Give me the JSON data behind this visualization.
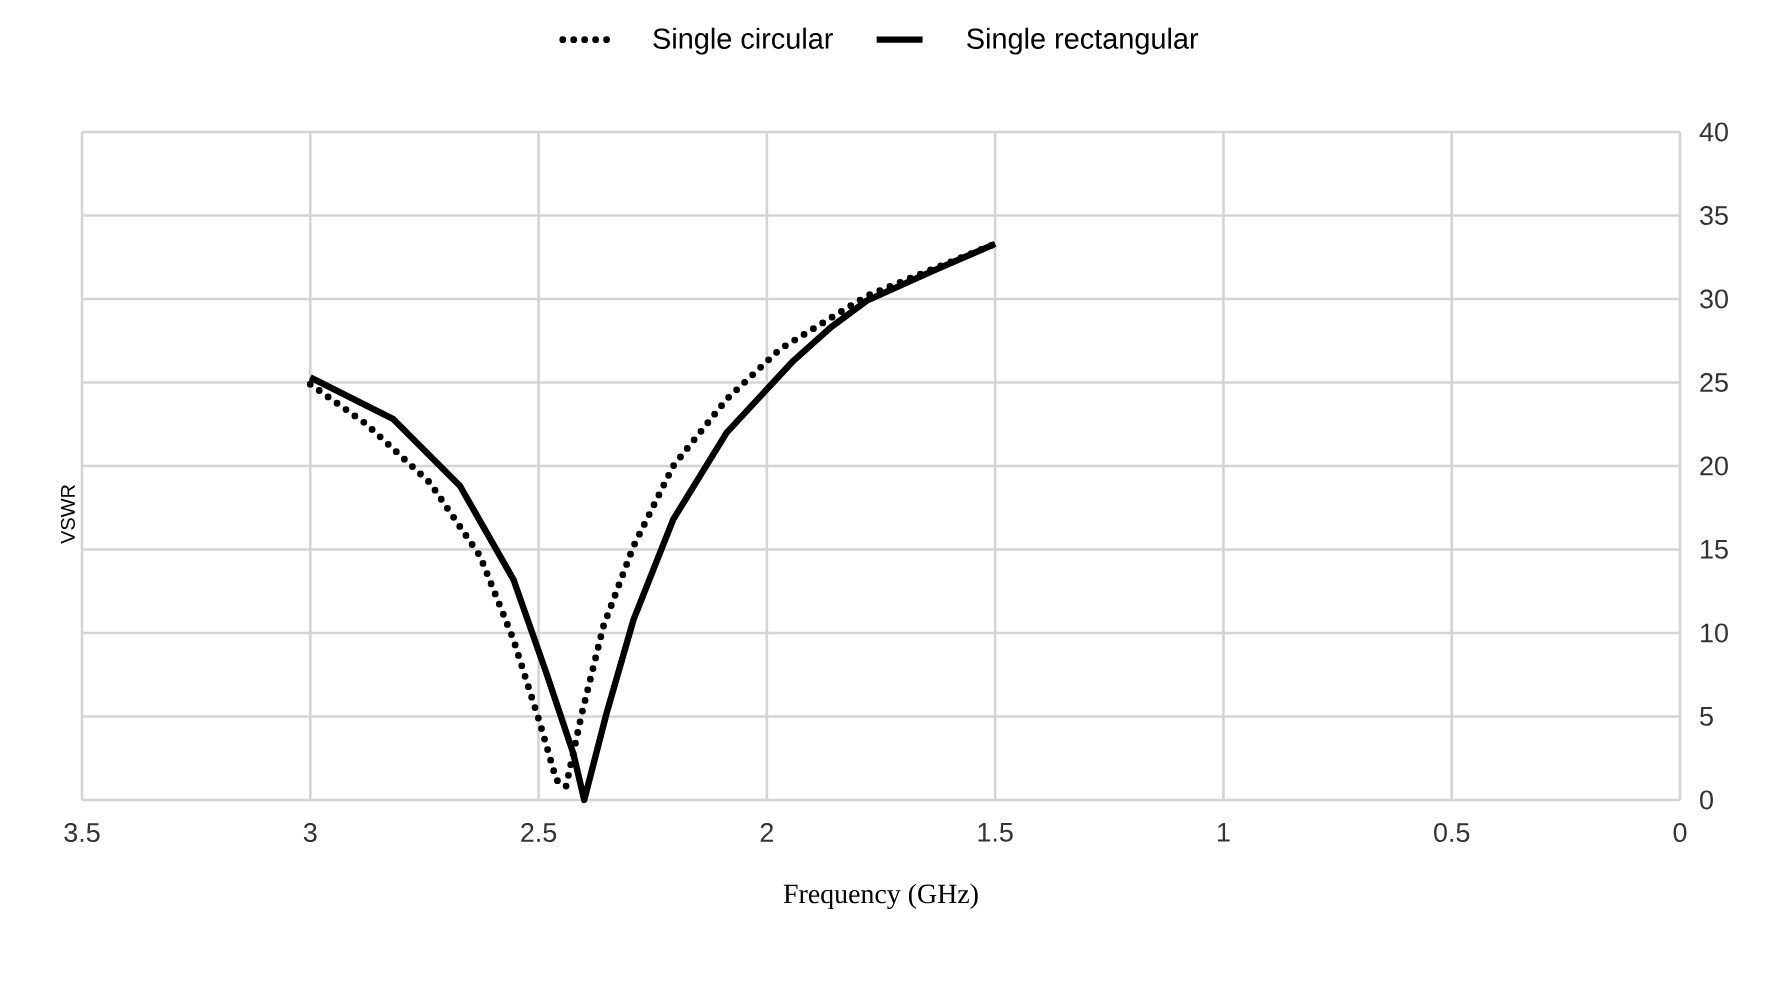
{
  "chart_data": {
    "type": "line",
    "xlabel": "Frequency (GHz)",
    "ylabel": "VSWR",
    "xlim": [
      3.5,
      0
    ],
    "xticks": [
      3.5,
      3,
      2.5,
      2,
      1.5,
      1,
      0.5,
      0
    ],
    "ylim": [
      0,
      40
    ],
    "yticks": [
      0,
      5,
      10,
      15,
      20,
      25,
      30,
      35,
      40
    ],
    "grid": true,
    "legend": "top",
    "series": [
      {
        "name": "Single circular",
        "color": "#000000",
        "line_style": "dotted",
        "x": [
          3.0,
          2.877,
          2.738,
          2.628,
          2.555,
          2.497,
          2.461,
          2.44,
          2.405,
          2.358,
          2.292,
          2.205,
          2.088,
          1.971,
          1.78,
          1.5
        ],
        "values": [
          24.9,
          22.5,
          19.0,
          14.6,
          9.6,
          4.6,
          1.2,
          0.8,
          5.2,
          10.4,
          15.2,
          20.0,
          24.0,
          27.0,
          30.2,
          33.3
        ]
      },
      {
        "name": "Single rectangular",
        "color": "#000000",
        "line_style": "solid",
        "x": [
          3.0,
          2.818,
          2.672,
          2.555,
          2.483,
          2.424,
          2.4,
          2.351,
          2.292,
          2.205,
          2.088,
          1.942,
          1.86,
          1.781,
          1.635,
          1.5
        ],
        "values": [
          25.3,
          22.8,
          18.8,
          13.2,
          7.6,
          2.8,
          0,
          5.2,
          10.8,
          16.8,
          22.0,
          26.3,
          28.3,
          29.9,
          31.7,
          33.3
        ]
      }
    ]
  }
}
